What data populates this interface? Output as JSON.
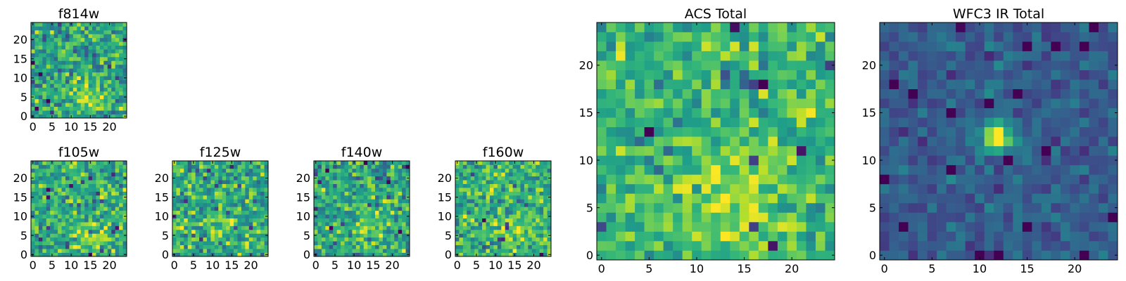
{
  "colormap": "viridis",
  "chart_data": [
    {
      "id": "f814w",
      "type": "heatmap",
      "title": "f814w",
      "xlim": [
        -0.5,
        24.5
      ],
      "ylim": [
        -0.5,
        24.5
      ],
      "xticks": [
        0,
        5,
        10,
        15,
        20
      ],
      "yticks": [
        0,
        5,
        10,
        15,
        20
      ],
      "tick_labels_x": [
        "0",
        "5",
        "10",
        "15",
        "20"
      ],
      "tick_labels_y": [
        "0",
        "5",
        "10",
        "15",
        "20"
      ],
      "grid_size": 25,
      "value_range": [
        0,
        1
      ],
      "pattern": {
        "base": 0.58,
        "noise": 0.22,
        "blob": {
          "x": 14,
          "y": 6,
          "sigma": 3,
          "amp": 0.25
        },
        "seed": 11
      }
    },
    {
      "id": "f105w",
      "type": "heatmap",
      "title": "f105w",
      "xlim": [
        -0.5,
        24.5
      ],
      "ylim": [
        -0.5,
        24.5
      ],
      "xticks": [
        0,
        5,
        10,
        15,
        20
      ],
      "yticks": [
        0,
        5,
        10,
        15,
        20
      ],
      "tick_labels_x": [
        "0",
        "5",
        "10",
        "15",
        "20"
      ],
      "tick_labels_y": [
        "0",
        "5",
        "10",
        "15",
        "20"
      ],
      "grid_size": 25,
      "value_range": [
        0,
        1
      ],
      "pattern": {
        "base": 0.62,
        "noise": 0.2,
        "blob": {
          "x": 15,
          "y": 5,
          "sigma": 3,
          "amp": 0.2
        },
        "seed": 23
      }
    },
    {
      "id": "f125w",
      "type": "heatmap",
      "title": "f125w",
      "xlim": [
        -0.5,
        24.5
      ],
      "ylim": [
        -0.5,
        24.5
      ],
      "xticks": [
        0,
        5,
        10,
        15,
        20
      ],
      "yticks": [
        0,
        5,
        10,
        15,
        20
      ],
      "tick_labels_x": [
        "0",
        "5",
        "10",
        "15",
        "20"
      ],
      "tick_labels_y": [
        "0",
        "5",
        "10",
        "15",
        "20"
      ],
      "grid_size": 25,
      "value_range": [
        0,
        1
      ],
      "pattern": {
        "base": 0.62,
        "noise": 0.22,
        "blob": {
          "x": 14,
          "y": 7,
          "sigma": 3,
          "amp": 0.15
        },
        "seed": 37
      }
    },
    {
      "id": "f140w",
      "type": "heatmap",
      "title": "f140w",
      "xlim": [
        -0.5,
        24.5
      ],
      "ylim": [
        -0.5,
        24.5
      ],
      "xticks": [
        0,
        5,
        10,
        15,
        20
      ],
      "yticks": [
        0,
        5,
        10,
        15,
        20
      ],
      "tick_labels_x": [
        "0",
        "5",
        "10",
        "15",
        "20"
      ],
      "tick_labels_y": [
        "0",
        "5",
        "10",
        "15",
        "20"
      ],
      "grid_size": 25,
      "value_range": [
        0,
        1
      ],
      "pattern": {
        "base": 0.6,
        "noise": 0.22,
        "blob": {
          "x": 13,
          "y": 6,
          "sigma": 3,
          "amp": 0.2
        },
        "seed": 53
      }
    },
    {
      "id": "f160w",
      "type": "heatmap",
      "title": "f160w",
      "xlim": [
        -0.5,
        24.5
      ],
      "ylim": [
        -0.5,
        24.5
      ],
      "xticks": [
        0,
        5,
        10,
        15,
        20
      ],
      "yticks": [
        0,
        5,
        10,
        15,
        20
      ],
      "tick_labels_x": [
        "0",
        "5",
        "10",
        "15",
        "20"
      ],
      "tick_labels_y": [
        "0",
        "5",
        "10",
        "15",
        "20"
      ],
      "grid_size": 25,
      "value_range": [
        0,
        1
      ],
      "pattern": {
        "base": 0.64,
        "noise": 0.2,
        "blob": {
          "x": 14,
          "y": 6,
          "sigma": 3,
          "amp": 0.15
        },
        "seed": 71
      }
    },
    {
      "id": "acs-total",
      "type": "heatmap",
      "title": "ACS Total",
      "xlim": [
        -0.5,
        24.5
      ],
      "ylim": [
        -0.5,
        24.5
      ],
      "xticks": [
        0,
        5,
        10,
        15,
        20
      ],
      "yticks": [
        0,
        5,
        10,
        15,
        20
      ],
      "tick_labels_x": [
        "0",
        "5",
        "10",
        "15",
        "20"
      ],
      "tick_labels_y": [
        "0",
        "5",
        "10",
        "15",
        "20"
      ],
      "grid_size": 25,
      "value_range": [
        0,
        1
      ],
      "pattern": {
        "base": 0.65,
        "noise": 0.18,
        "blob": {
          "x": 14,
          "y": 6,
          "sigma": 3.5,
          "amp": 0.3
        },
        "seed": 89
      }
    },
    {
      "id": "wfc3-ir-total",
      "type": "heatmap",
      "title": "WFC3 IR Total",
      "xlim": [
        -0.5,
        24.5
      ],
      "ylim": [
        -0.5,
        24.5
      ],
      "xticks": [
        0,
        5,
        10,
        15,
        20
      ],
      "yticks": [
        0,
        5,
        10,
        15,
        20
      ],
      "tick_labels_x": [
        "0",
        "5",
        "10",
        "15",
        "20"
      ],
      "tick_labels_y": [
        "0",
        "5",
        "10",
        "15",
        "20"
      ],
      "grid_size": 25,
      "value_range": [
        0,
        1
      ],
      "pattern": {
        "base": 0.3,
        "noise": 0.1,
        "blob": {
          "x": 12,
          "y": 12.5,
          "sigma": 1.1,
          "amp": 0.75
        },
        "seed": 101
      }
    }
  ]
}
